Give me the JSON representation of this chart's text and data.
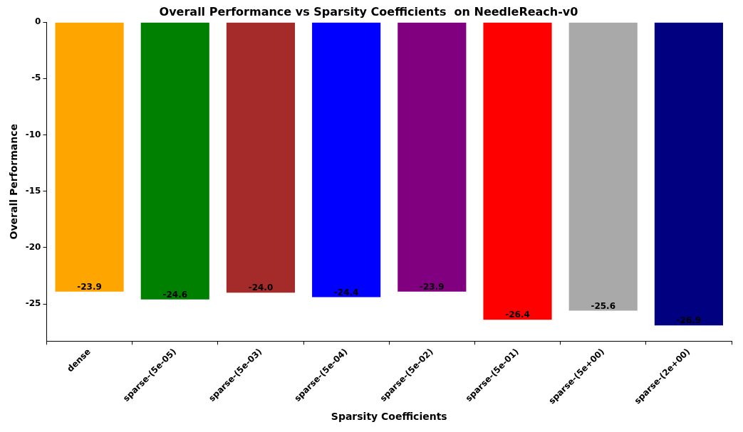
{
  "chart_data": {
    "type": "bar",
    "title": "Overall Performance vs Sparsity Coefficients  on NeedleReach-v0",
    "xlabel": "Sparsity Coefficients",
    "ylabel": "Overall Performance",
    "categories": [
      "dense",
      "sparse-(5e-05)",
      "sparse-(5e-03)",
      "sparse-(5e-04)",
      "sparse-(5e-02)",
      "sparse-(5e-01)",
      "sparse-(5e+00)",
      "sparse-(2e+00)"
    ],
    "values": [
      -23.9,
      -24.6,
      -24.0,
      -24.4,
      -23.9,
      -26.4,
      -25.6,
      -26.9
    ],
    "colors": [
      "#ffa500",
      "#008000",
      "#a52a2a",
      "#0000ff",
      "#800080",
      "#ff0000",
      "#a9a9a9",
      "#000080"
    ],
    "value_labels": [
      "-23.9",
      "-24.6",
      "-24.0",
      "-24.4",
      "-23.9",
      "-26.4",
      "-25.6",
      "-26.9"
    ],
    "ylim": [
      -28.3,
      0
    ],
    "yticks": [
      -25,
      -20,
      -15,
      -10,
      -5,
      0
    ],
    "grid": false,
    "legend": false
  }
}
